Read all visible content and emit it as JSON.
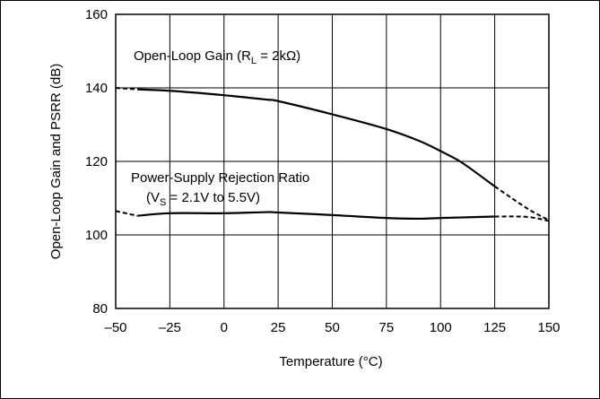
{
  "chart_data": {
    "type": "line",
    "title": "",
    "xlabel": "Temperature (°C)",
    "ylabel": "Open-Loop Gain and PSRR (dB)",
    "xlim": [
      -50,
      150
    ],
    "ylim": [
      80,
      160
    ],
    "x_ticks": [
      -50,
      -25,
      0,
      25,
      50,
      75,
      100,
      125,
      150
    ],
    "x_tick_labels": [
      "–50",
      "–25",
      "0",
      "25",
      "50",
      "75",
      "100",
      "125",
      "150"
    ],
    "y_ticks": [
      80,
      100,
      120,
      140,
      160
    ],
    "y_tick_labels": [
      "80",
      "100",
      "120",
      "140",
      "160"
    ],
    "grid": true,
    "series": [
      {
        "name": "Open-Loop Gain (RL = 2kΩ)",
        "solid_range": [
          -40,
          125
        ],
        "points": [
          [
            -50,
            140
          ],
          [
            -40,
            139.6
          ],
          [
            -25,
            139.2
          ],
          [
            0,
            138.0
          ],
          [
            20,
            136.8
          ],
          [
            25,
            136.4
          ],
          [
            50,
            132.8
          ],
          [
            75,
            128.8
          ],
          [
            90,
            125.6
          ],
          [
            100,
            122.8
          ],
          [
            110,
            119.6
          ],
          [
            125,
            113.2
          ],
          [
            140,
            107.2
          ],
          [
            150,
            104.0
          ]
        ]
      },
      {
        "name": "Power-Supply Rejection Ratio (VS = 2.1V to 5.5V)",
        "solid_range": [
          -40,
          125
        ],
        "points": [
          [
            -50,
            106.5
          ],
          [
            -40,
            105.2
          ],
          [
            -25,
            105.9
          ],
          [
            0,
            105.9
          ],
          [
            20,
            106.2
          ],
          [
            25,
            106.1
          ],
          [
            50,
            105.4
          ],
          [
            75,
            104.6
          ],
          [
            90,
            104.4
          ],
          [
            100,
            104.6
          ],
          [
            125,
            105.0
          ],
          [
            140,
            104.9
          ],
          [
            150,
            103.8
          ]
        ]
      }
    ],
    "annotations": {
      "olg_main": "Open-Loop Gain (R",
      "olg_sub": "L",
      "olg_end": " = 2kΩ)",
      "psrr_line1": "Power-Supply Rejection Ratio",
      "psrr_open": "(V",
      "psrr_sub": "S",
      "psrr_end": " = 2.1V to 5.5V)"
    }
  }
}
